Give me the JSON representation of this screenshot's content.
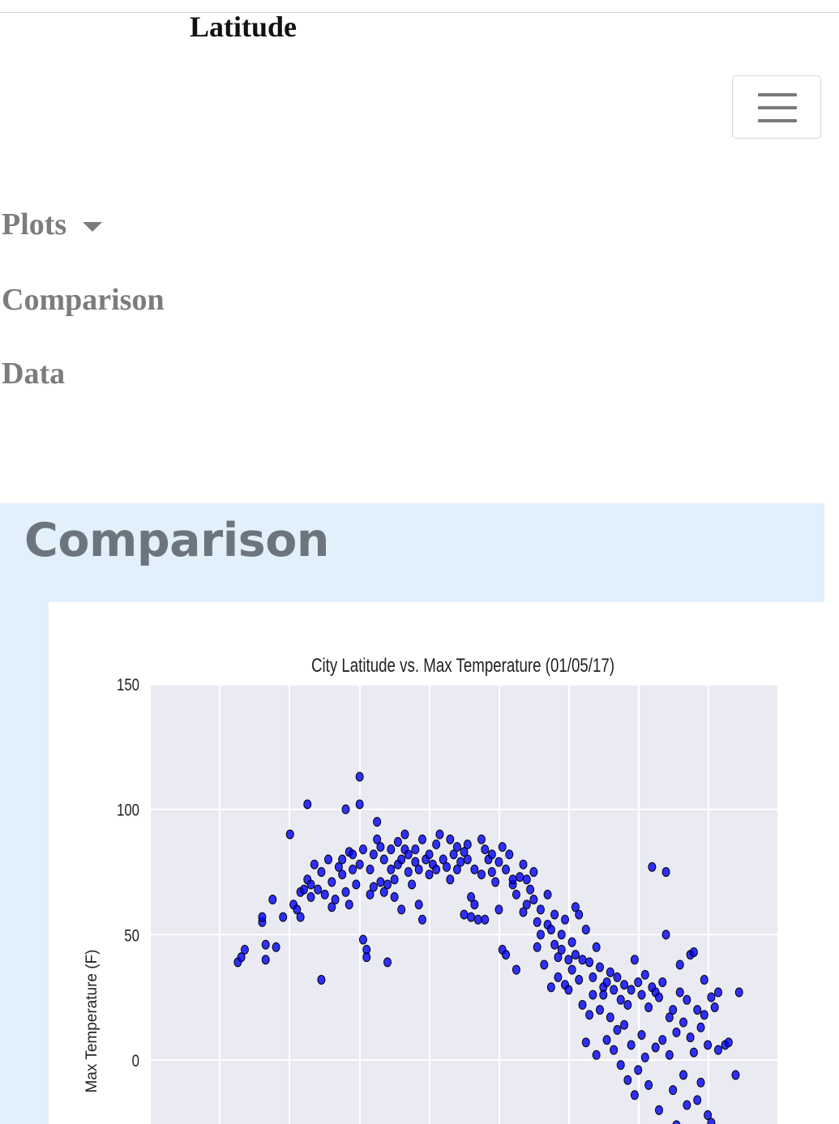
{
  "navbar": {
    "brand": "Latitude",
    "toggler_icon": "hamburger-menu-icon",
    "items": [
      {
        "label": "Plots",
        "has_dropdown": true
      },
      {
        "label": "Comparison"
      },
      {
        "label": "Data"
      }
    ],
    "dropdown_icon": "caret-down-icon"
  },
  "section": {
    "title": "Comparison",
    "background_color": "#e2f0fc"
  },
  "chart_data": {
    "type": "scatter",
    "title": "City Latitude vs. Max Temperature (01/05/17)",
    "ylabel": "Max Temperature (F)",
    "xlabel": "",
    "ylim": [
      -25,
      150
    ],
    "yticks": [
      "150",
      "100",
      "50",
      "0"
    ],
    "grid": true,
    "marker_color": "#0000ff",
    "plot_background": "#eaeaf2",
    "series": [
      {
        "points": [
          [
            -45,
            39
          ],
          [
            -44,
            41
          ],
          [
            -43,
            44
          ],
          [
            -38,
            55
          ],
          [
            -38,
            57
          ],
          [
            -37,
            40
          ],
          [
            -37,
            46
          ],
          [
            -35,
            64
          ],
          [
            -34,
            45
          ],
          [
            -32,
            57
          ],
          [
            -30,
            90
          ],
          [
            -29,
            62
          ],
          [
            -28,
            60
          ],
          [
            -27,
            57
          ],
          [
            -27,
            67
          ],
          [
            -26,
            68
          ],
          [
            -25,
            72
          ],
          [
            -25,
            102
          ],
          [
            -24,
            70
          ],
          [
            -24,
            65
          ],
          [
            -23,
            78
          ],
          [
            -22,
            68
          ],
          [
            -21,
            75
          ],
          [
            -21,
            32
          ],
          [
            -20,
            66
          ],
          [
            -19,
            80
          ],
          [
            -18,
            71
          ],
          [
            -18,
            61
          ],
          [
            -17,
            64
          ],
          [
            -16,
            77
          ],
          [
            -15,
            80
          ],
          [
            -15,
            74
          ],
          [
            -14,
            100
          ],
          [
            -14,
            67
          ],
          [
            -13,
            83
          ],
          [
            -13,
            62
          ],
          [
            -12,
            76
          ],
          [
            -12,
            82
          ],
          [
            -11,
            70
          ],
          [
            -10,
            78
          ],
          [
            -10,
            113
          ],
          [
            -10,
            102
          ],
          [
            -9,
            48
          ],
          [
            -9,
            84
          ],
          [
            -8,
            44
          ],
          [
            -8,
            41
          ],
          [
            -7,
            66
          ],
          [
            -7,
            76
          ],
          [
            -6,
            82
          ],
          [
            -6,
            69
          ],
          [
            -5,
            88
          ],
          [
            -5,
            95
          ],
          [
            -4,
            71
          ],
          [
            -4,
            85
          ],
          [
            -3,
            67
          ],
          [
            -3,
            80
          ],
          [
            -2,
            70
          ],
          [
            -2,
            39
          ],
          [
            -1,
            84
          ],
          [
            -1,
            76
          ],
          [
            0,
            65
          ],
          [
            0,
            72
          ],
          [
            1,
            87
          ],
          [
            1,
            78
          ],
          [
            2,
            80
          ],
          [
            2,
            60
          ],
          [
            3,
            84
          ],
          [
            3,
            90
          ],
          [
            4,
            75
          ],
          [
            4,
            82
          ],
          [
            5,
            70
          ],
          [
            6,
            79
          ],
          [
            6,
            84
          ],
          [
            7,
            62
          ],
          [
            7,
            76
          ],
          [
            8,
            88
          ],
          [
            8,
            56
          ],
          [
            9,
            80
          ],
          [
            10,
            82
          ],
          [
            10,
            74
          ],
          [
            11,
            78
          ],
          [
            12,
            86
          ],
          [
            12,
            76
          ],
          [
            13,
            90
          ],
          [
            14,
            80
          ],
          [
            15,
            77
          ],
          [
            16,
            72
          ],
          [
            16,
            88
          ],
          [
            17,
            82
          ],
          [
            18,
            85
          ],
          [
            18,
            76
          ],
          [
            19,
            79
          ],
          [
            20,
            58
          ],
          [
            20,
            83
          ],
          [
            21,
            86
          ],
          [
            21,
            80
          ],
          [
            22,
            65
          ],
          [
            22,
            57
          ],
          [
            23,
            76
          ],
          [
            23,
            62
          ],
          [
            24,
            56
          ],
          [
            25,
            88
          ],
          [
            25,
            74
          ],
          [
            26,
            84
          ],
          [
            26,
            56
          ],
          [
            27,
            80
          ],
          [
            28,
            75
          ],
          [
            28,
            82
          ],
          [
            29,
            71
          ],
          [
            30,
            79
          ],
          [
            30,
            60
          ],
          [
            31,
            85
          ],
          [
            31,
            44
          ],
          [
            32,
            76
          ],
          [
            32,
            42
          ],
          [
            33,
            82
          ],
          [
            34,
            70
          ],
          [
            34,
            72
          ],
          [
            35,
            66
          ],
          [
            35,
            36
          ],
          [
            36,
            73
          ],
          [
            37,
            78
          ],
          [
            37,
            59
          ],
          [
            38,
            72
          ],
          [
            38,
            62
          ],
          [
            39,
            68
          ],
          [
            40,
            64
          ],
          [
            40,
            75
          ],
          [
            41,
            55
          ],
          [
            41,
            45
          ],
          [
            42,
            60
          ],
          [
            42,
            50
          ],
          [
            43,
            38
          ],
          [
            44,
            54
          ],
          [
            44,
            66
          ],
          [
            45,
            52
          ],
          [
            45,
            29
          ],
          [
            46,
            46
          ],
          [
            46,
            58
          ],
          [
            47,
            41
          ],
          [
            47,
            33
          ],
          [
            48,
            44
          ],
          [
            48,
            50
          ],
          [
            49,
            30
          ],
          [
            49,
            56
          ],
          [
            50,
            40
          ],
          [
            50,
            28
          ],
          [
            51,
            36
          ],
          [
            51,
            47
          ],
          [
            52,
            61
          ],
          [
            52,
            42
          ],
          [
            53,
            32
          ],
          [
            53,
            58
          ],
          [
            54,
            40
          ],
          [
            54,
            22
          ],
          [
            55,
            52
          ],
          [
            55,
            7
          ],
          [
            56,
            39
          ],
          [
            56,
            18
          ],
          [
            57,
            33
          ],
          [
            57,
            26
          ],
          [
            58,
            45
          ],
          [
            58,
            2
          ],
          [
            59,
            37
          ],
          [
            59,
            20
          ],
          [
            60,
            29
          ],
          [
            60,
            26
          ],
          [
            61,
            31
          ],
          [
            61,
            8
          ],
          [
            62,
            35
          ],
          [
            62,
            17
          ],
          [
            63,
            28
          ],
          [
            63,
            4
          ],
          [
            64,
            33
          ],
          [
            64,
            12
          ],
          [
            65,
            24
          ],
          [
            65,
            -2
          ],
          [
            66,
            30
          ],
          [
            66,
            14
          ],
          [
            67,
            22
          ],
          [
            67,
            -8
          ],
          [
            68,
            28
          ],
          [
            68,
            6
          ],
          [
            69,
            40
          ],
          [
            69,
            -14
          ],
          [
            70,
            31
          ],
          [
            70,
            -4
          ],
          [
            71,
            26
          ],
          [
            71,
            10
          ],
          [
            72,
            34
          ],
          [
            72,
            1
          ],
          [
            73,
            21
          ],
          [
            73,
            -10
          ],
          [
            74,
            29
          ],
          [
            74,
            77
          ],
          [
            75,
            27
          ],
          [
            75,
            5
          ],
          [
            76,
            25
          ],
          [
            76,
            -20
          ],
          [
            77,
            31
          ],
          [
            77,
            8
          ],
          [
            78,
            50
          ],
          [
            78,
            75
          ],
          [
            79,
            17
          ],
          [
            79,
            2
          ],
          [
            80,
            20
          ],
          [
            80,
            -12
          ],
          [
            81,
            -26
          ],
          [
            81,
            11
          ],
          [
            82,
            38
          ],
          [
            82,
            27
          ],
          [
            83,
            15
          ],
          [
            83,
            -6
          ],
          [
            84,
            24
          ],
          [
            84,
            -18
          ],
          [
            85,
            42
          ],
          [
            85,
            9
          ],
          [
            86,
            43
          ],
          [
            86,
            3
          ],
          [
            87,
            20
          ],
          [
            87,
            -16
          ],
          [
            88,
            13
          ],
          [
            88,
            -9
          ],
          [
            89,
            32
          ],
          [
            89,
            18
          ],
          [
            90,
            -22
          ],
          [
            90,
            6
          ],
          [
            91,
            25
          ],
          [
            91,
            -25
          ],
          [
            92,
            21
          ],
          [
            93,
            27
          ],
          [
            93,
            4
          ],
          [
            95,
            6
          ],
          [
            96,
            7
          ],
          [
            98,
            -6
          ],
          [
            99,
            27
          ]
        ]
      }
    ]
  }
}
